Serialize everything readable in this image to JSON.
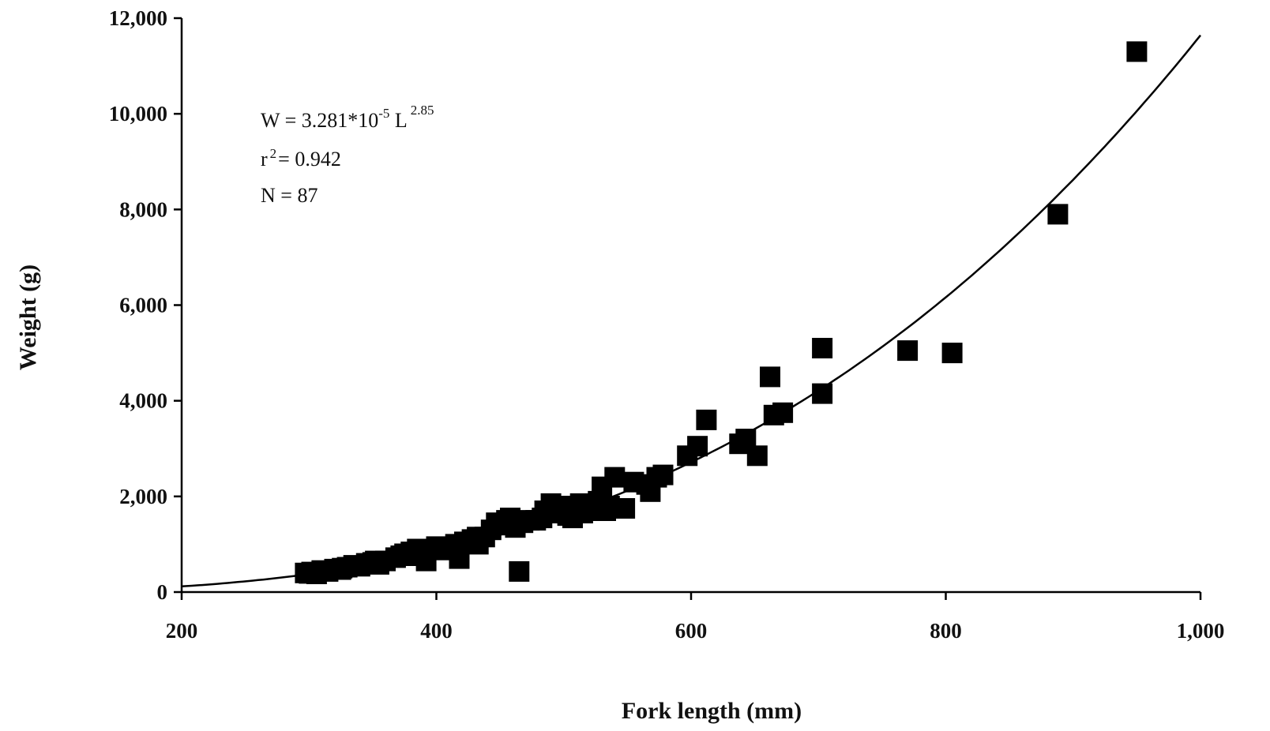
{
  "chart_data": {
    "type": "scatter",
    "title": "",
    "xlabel": "Fork length (mm)",
    "ylabel": "Weight (g)",
    "xlim": [
      200,
      1000
    ],
    "ylim": [
      0,
      12000
    ],
    "xticks": [
      200,
      400,
      600,
      800,
      1000
    ],
    "xtick_labels": [
      "200",
      "400",
      "600",
      "800",
      "1,000"
    ],
    "yticks": [
      0,
      2000,
      4000,
      6000,
      8000,
      10000,
      12000
    ],
    "ytick_labels": [
      "0",
      "2,000",
      "4,000",
      "6,000",
      "8,000",
      "10,000",
      "12,000"
    ],
    "grid": false,
    "marker": "square",
    "color": "#000000",
    "annotation": {
      "eq_prefix": "W = 3.281*10",
      "eq_exp1": "-5",
      "eq_mid": " L",
      "eq_exp2": "2.85",
      "r2_r": "r",
      "r2_exp": "2",
      "r2_rest": "= 0.942",
      "n": "N = 87"
    },
    "fit": {
      "a": 3.281e-05,
      "b": 2.85
    },
    "points": [
      [
        297,
        400
      ],
      [
        302,
        420
      ],
      [
        306,
        380
      ],
      [
        310,
        450
      ],
      [
        315,
        430
      ],
      [
        320,
        480
      ],
      [
        326,
        500
      ],
      [
        330,
        520
      ],
      [
        335,
        560
      ],
      [
        340,
        540
      ],
      [
        345,
        600
      ],
      [
        350,
        620
      ],
      [
        355,
        580
      ],
      [
        360,
        650
      ],
      [
        368,
        720
      ],
      [
        375,
        800
      ],
      [
        380,
        840
      ],
      [
        385,
        900
      ],
      [
        388,
        760
      ],
      [
        392,
        650
      ],
      [
        395,
        900
      ],
      [
        400,
        950
      ],
      [
        405,
        880
      ],
      [
        410,
        920
      ],
      [
        415,
        1000
      ],
      [
        418,
        700
      ],
      [
        422,
        1050
      ],
      [
        428,
        1100
      ],
      [
        433,
        1000
      ],
      [
        438,
        1150
      ],
      [
        443,
        1300
      ],
      [
        447,
        1450
      ],
      [
        450,
        1400
      ],
      [
        455,
        1500
      ],
      [
        458,
        1550
      ],
      [
        462,
        1350
      ],
      [
        465,
        430
      ],
      [
        468,
        1450
      ],
      [
        473,
        1500
      ],
      [
        478,
        1500
      ],
      [
        483,
        1550
      ],
      [
        488,
        1650
      ],
      [
        490,
        1850
      ],
      [
        495,
        1750
      ],
      [
        498,
        1700
      ],
      [
        500,
        1800
      ],
      [
        503,
        1600
      ],
      [
        507,
        1550
      ],
      [
        510,
        1750
      ],
      [
        513,
        1850
      ],
      [
        517,
        1800
      ],
      [
        520,
        1700
      ],
      [
        523,
        1750
      ],
      [
        527,
        1900
      ],
      [
        530,
        2200
      ],
      [
        533,
        1700
      ],
      [
        536,
        1800
      ],
      [
        540,
        2400
      ],
      [
        543,
        1750
      ],
      [
        548,
        1750
      ],
      [
        555,
        2300
      ],
      [
        565,
        2250
      ],
      [
        568,
        2100
      ],
      [
        573,
        2400
      ],
      [
        578,
        2450
      ],
      [
        597,
        2850
      ],
      [
        605,
        3050
      ],
      [
        612,
        3600
      ],
      [
        638,
        3100
      ],
      [
        643,
        3200
      ],
      [
        652,
        2850
      ],
      [
        662,
        4500
      ],
      [
        665,
        3700
      ],
      [
        672,
        3750
      ],
      [
        703,
        5100
      ],
      [
        703,
        4150
      ],
      [
        770,
        5050
      ],
      [
        805,
        5000
      ],
      [
        888,
        7900
      ],
      [
        950,
        11300
      ],
      [
        300,
        390
      ],
      [
        325,
        470
      ],
      [
        352,
        650
      ],
      [
        372,
        760
      ],
      [
        432,
        1150
      ],
      [
        485,
        1700
      ],
      [
        515,
        1650
      ]
    ]
  }
}
